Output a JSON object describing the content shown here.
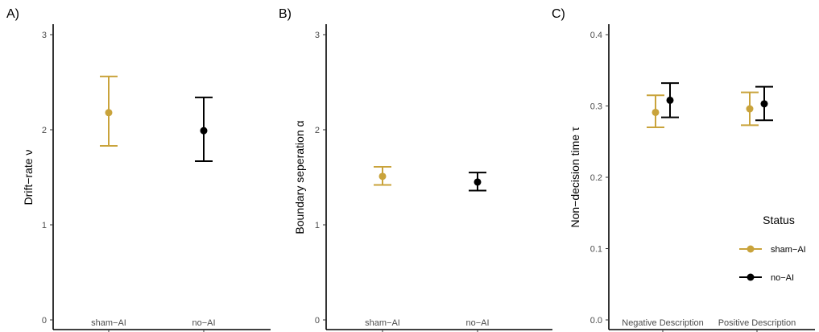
{
  "chart_data": [
    {
      "type": "errorbar",
      "panel_tag": "A)",
      "ylabel": "Drift−rate ν",
      "ylim": [
        0,
        3
      ],
      "yticks": [
        0,
        1,
        2,
        3
      ],
      "categories": [
        "sham−AI",
        "no−AI"
      ],
      "series": [
        {
          "name": "sham−AI",
          "color": "#c9a33b",
          "points": [
            {
              "x": "sham−AI",
              "y": 2.18,
              "lo": 1.83,
              "hi": 2.56
            }
          ]
        },
        {
          "name": "no−AI",
          "color": "#000000",
          "points": [
            {
              "x": "no−AI",
              "y": 1.99,
              "lo": 1.67,
              "hi": 2.34
            }
          ]
        }
      ]
    },
    {
      "type": "errorbar",
      "panel_tag": "B)",
      "ylabel": "Boundary seperation α",
      "ylim": [
        0,
        3
      ],
      "yticks": [
        0,
        1,
        2,
        3
      ],
      "categories": [
        "sham−AI",
        "no−AI"
      ],
      "series": [
        {
          "name": "sham−AI",
          "color": "#c9a33b",
          "points": [
            {
              "x": "sham−AI",
              "y": 1.51,
              "lo": 1.42,
              "hi": 1.61
            }
          ]
        },
        {
          "name": "no−AI",
          "color": "#000000",
          "points": [
            {
              "x": "no−AI",
              "y": 1.45,
              "lo": 1.36,
              "hi": 1.55
            }
          ]
        }
      ]
    },
    {
      "type": "errorbar",
      "panel_tag": "C)",
      "ylabel": "Non−decision time τ",
      "ylim": [
        0,
        0.4
      ],
      "yticks": [
        0.0,
        0.1,
        0.2,
        0.3,
        0.4
      ],
      "ytick_labels": [
        "0.0",
        "0.1",
        "0.2",
        "0.3",
        "0.4"
      ],
      "categories": [
        "Negative Description",
        "Positive Description"
      ],
      "series": [
        {
          "name": "sham−AI",
          "color": "#c9a33b",
          "points": [
            {
              "x": "Negative Description",
              "y": 0.291,
              "lo": 0.27,
              "hi": 0.315
            },
            {
              "x": "Positive Description",
              "y": 0.296,
              "lo": 0.273,
              "hi": 0.319
            }
          ]
        },
        {
          "name": "no−AI",
          "color": "#000000",
          "points": [
            {
              "x": "Negative Description",
              "y": 0.308,
              "lo": 0.284,
              "hi": 0.332
            },
            {
              "x": "Positive Description",
              "y": 0.303,
              "lo": 0.28,
              "hi": 0.327
            }
          ]
        }
      ],
      "legend": {
        "title": "Status",
        "placement": "right",
        "entries": [
          {
            "label": "sham−AI",
            "color": "#c9a33b"
          },
          {
            "label": "no−AI",
            "color": "#000000"
          }
        ]
      }
    }
  ]
}
